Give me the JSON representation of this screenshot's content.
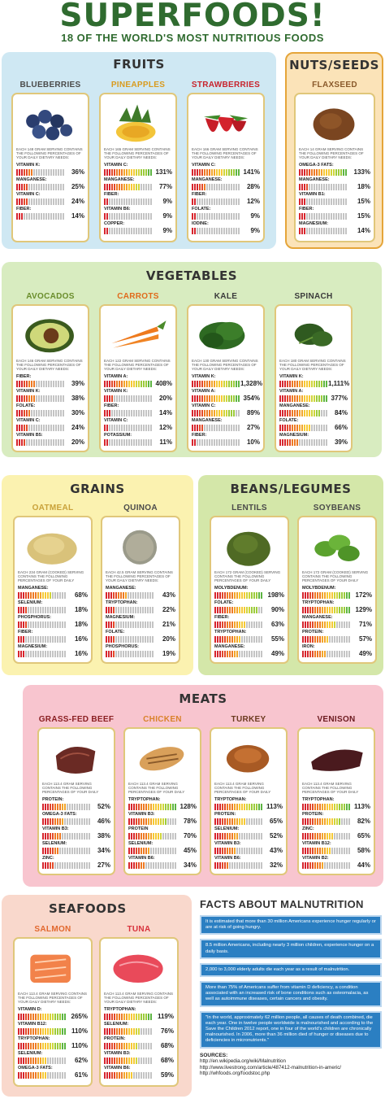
{
  "title": "SUPERFOODS!",
  "subtitle": "18 OF THE WORLD'S MOST NUTRITIOUS FOODS",
  "colors": {
    "fruits_bg": "#cfe8f3",
    "nuts_bg": "#fbe3b8",
    "vegetables_bg": "#d8ecc0",
    "grains_bg": "#fbf2b0",
    "beans_bg": "#d4e7a9",
    "meats_bg": "#f8c5cf",
    "seafoods_bg": "#f9d8cc",
    "fact_box": "#2b7fc2",
    "title_green": "#2f6b2f"
  },
  "sections": [
    {
      "key": "fruits",
      "title": "FRUITS",
      "foods": [
        {
          "name": "BLUEBERRIES",
          "name_color": "#4b4b4b",
          "icon": "blueberries-photo",
          "serving": "EACH 148 GRAM SERVING CONTAINS THE FOLLOWING PERCENTAGES OF YOUR DAILY DIETARY NEEDS:",
          "nutrients": [
            {
              "name": "VITAMIN K:",
              "value": "36%",
              "level": 0.36
            },
            {
              "name": "MANGANESE:",
              "value": "25%",
              "level": 0.25
            },
            {
              "name": "VITAMIN C:",
              "value": "24%",
              "level": 0.24
            },
            {
              "name": "FIBER:",
              "value": "14%",
              "level": 0.14
            }
          ]
        },
        {
          "name": "PINEAPPLES",
          "name_color": "#d99b1e",
          "icon": "pineapple-photo",
          "serving": "EACH 165 GRAM SERVING CONTAINS THE FOLLOWING PERCENTAGES OF YOUR DAILY DIETARY NEEDS:",
          "nutrients": [
            {
              "name": "VITAMIN C:",
              "value": "131%",
              "level": 1.0
            },
            {
              "name": "MANGANESE:",
              "value": "77%",
              "level": 0.77
            },
            {
              "name": "FIBER:",
              "value": "9%",
              "level": 0.09
            },
            {
              "name": "VITAMIN B6:",
              "value": "9%",
              "level": 0.09
            },
            {
              "name": "COPPER:",
              "value": "9%",
              "level": 0.09
            }
          ]
        },
        {
          "name": "STRAWBERRIES",
          "name_color": "#c8232c",
          "icon": "strawberries-photo",
          "serving": "EACH 166 GRAM SERVING CONTAINS THE FOLLOWING PERCENTAGES OF YOUR DAILY DIETARY NEEDS:",
          "nutrients": [
            {
              "name": "VITAMIN C:",
              "value": "141%",
              "level": 1.0
            },
            {
              "name": "MANGANESE:",
              "value": "28%",
              "level": 0.28
            },
            {
              "name": "FIBER:",
              "value": "12%",
              "level": 0.12
            },
            {
              "name": "FOLATE:",
              "value": "9%",
              "level": 0.09
            },
            {
              "name": "IODINE:",
              "value": "9%",
              "level": 0.09
            }
          ]
        }
      ]
    },
    {
      "key": "nuts",
      "title": "NUTS/SEEDS",
      "foods": [
        {
          "name": "FLAXSEED",
          "name_color": "#8a5a2b",
          "icon": "flaxseed-photo",
          "serving": "EACH 14 GRAM SERVING CONTAINS THE FOLLOWING PERCENTAGES OF YOUR DAILY DIETARY NEEDS:",
          "nutrients": [
            {
              "name": "OMEGA-3 FATS:",
              "value": "133%",
              "level": 1.0
            },
            {
              "name": "MANGANESE:",
              "value": "18%",
              "level": 0.18
            },
            {
              "name": "VITAMIN B1:",
              "value": "15%",
              "level": 0.15
            },
            {
              "name": "FIBER:",
              "value": "15%",
              "level": 0.15
            },
            {
              "name": "MAGNESIUM:",
              "value": "14%",
              "level": 0.14
            }
          ]
        }
      ]
    },
    {
      "key": "vegetables",
      "title": "VEGETABLES",
      "foods": [
        {
          "name": "AVOCADOS",
          "name_color": "#6a8d2b",
          "icon": "avocado-photo",
          "serving": "EACH 146 GRAM SERVING CONTAINS THE FOLLOWING PERCENTAGES OF YOUR DAILY DIETARY NEEDS:",
          "nutrients": [
            {
              "name": "FIBER:",
              "value": "39%",
              "level": 0.39
            },
            {
              "name": "VITAMIN K:",
              "value": "38%",
              "level": 0.38
            },
            {
              "name": "FOLATE:",
              "value": "30%",
              "level": 0.3
            },
            {
              "name": "VITAMIN C:",
              "value": "24%",
              "level": 0.24
            },
            {
              "name": "VITAMIN B5:",
              "value": "20%",
              "level": 0.2
            }
          ]
        },
        {
          "name": "CARROTS",
          "name_color": "#e06a1b",
          "icon": "carrots-photo",
          "serving": "EACH 122 GRAM SERVING CONTAINS THE FOLLOWING PERCENTAGES OF YOUR DAILY DIETARY NEEDS:",
          "nutrients": [
            {
              "name": "VITAMIN A:",
              "value": "408%",
              "level": 1.0
            },
            {
              "name": "VITAMIN K:",
              "value": "20%",
              "level": 0.2
            },
            {
              "name": "FIBER:",
              "value": "14%",
              "level": 0.14
            },
            {
              "name": "VITAMIN C:",
              "value": "12%",
              "level": 0.12
            },
            {
              "name": "POTASSIUM:",
              "value": "11%",
              "level": 0.11
            }
          ]
        },
        {
          "name": "KALE",
          "name_color": "#3b3b3b",
          "icon": "kale-photo",
          "serving": "EACH 130 GRAM SERVING CONTAINS THE FOLLOWING PERCENTAGES OF YOUR DAILY DIETARY NEEDS:",
          "nutrients": [
            {
              "name": "VITAMIN K:",
              "value": "1,328%",
              "level": 1.0
            },
            {
              "name": "VITAMIN A:",
              "value": "354%",
              "level": 1.0
            },
            {
              "name": "VITAMIN C:",
              "value": "89%",
              "level": 0.89
            },
            {
              "name": "MANGANESE:",
              "value": "27%",
              "level": 0.27
            },
            {
              "name": "FIBER:",
              "value": "10%",
              "level": 0.1
            }
          ]
        },
        {
          "name": "SPINACH",
          "name_color": "#3b3b3b",
          "icon": "spinach-photo",
          "serving": "EACH 180 GRAM SERVING CONTAINS THE FOLLOWING PERCENTAGES OF YOUR DAILY DIETARY NEEDS:",
          "nutrients": [
            {
              "name": "VITAMIN K:",
              "value": "1,111%",
              "level": 1.0
            },
            {
              "name": "VITAMIN A:",
              "value": "377%",
              "level": 1.0
            },
            {
              "name": "MANGANESE:",
              "value": "84%",
              "level": 0.84
            },
            {
              "name": "FOLATE:",
              "value": "66%",
              "level": 0.66
            },
            {
              "name": "MAGNESIUM:",
              "value": "39%",
              "level": 0.39
            }
          ]
        }
      ]
    },
    {
      "key": "grains",
      "title": "GRAINS",
      "foods": [
        {
          "name": "OATMEAL",
          "name_color": "#c9a23a",
          "icon": "oatmeal-photo",
          "serving": "EACH 234 GRAM (COOKED) SERVING CONTAINS THE FOLLOWING PERCENTAGES OF YOUR DAILY DIETARY NEEDS:",
          "nutrients": [
            {
              "name": "MANGANESE:",
              "value": "68%",
              "level": 0.68
            },
            {
              "name": "SELENIUM:",
              "value": "18%",
              "level": 0.18
            },
            {
              "name": "PHOSPHORUS:",
              "value": "18%",
              "level": 0.18
            },
            {
              "name": "FIBER:",
              "value": "16%",
              "level": 0.16
            },
            {
              "name": "MAGNESIUM:",
              "value": "16%",
              "level": 0.16
            }
          ]
        },
        {
          "name": "QUINOA",
          "name_color": "#4b4b4b",
          "icon": "quinoa-photo",
          "serving": "EACH 42.5 GRAM SERVING CONTAINS THE FOLLOWING PERCENTAGES OF YOUR DAILY DIETARY NEEDS:",
          "nutrients": [
            {
              "name": "MANGANESE:",
              "value": "43%",
              "level": 0.43
            },
            {
              "name": "TRYPTOPHAN:",
              "value": "22%",
              "level": 0.22
            },
            {
              "name": "MAGNESIUM:",
              "value": "21%",
              "level": 0.21
            },
            {
              "name": "FOLATE:",
              "value": "20%",
              "level": 0.2
            },
            {
              "name": "PHOSPHORUS:",
              "value": "19%",
              "level": 0.19
            }
          ]
        }
      ]
    },
    {
      "key": "beans",
      "title": "BEANS/LEGUMES",
      "foods": [
        {
          "name": "LENTILS",
          "name_color": "#4b4b4b",
          "icon": "lentils-photo",
          "serving": "EACH 172 GRAM (COOKED) SERVING CONTAINS THE FOLLOWING PERCENTAGES OF YOUR DAILY DIETARY NEEDS:",
          "nutrients": [
            {
              "name": "MOLYBDENUM:",
              "value": "198%",
              "level": 1.0
            },
            {
              "name": "FOLATE:",
              "value": "90%",
              "level": 0.9
            },
            {
              "name": "FIBER:",
              "value": "63%",
              "level": 0.63
            },
            {
              "name": "TRYPTOPHAN:",
              "value": "55%",
              "level": 0.55
            },
            {
              "name": "MANGANESE:",
              "value": "49%",
              "level": 0.49
            }
          ]
        },
        {
          "name": "SOYBEANS",
          "name_color": "#4b4b4b",
          "icon": "soybeans-photo",
          "serving": "EACH 172 GRAM (COOKED) SERVING CONTAINS THE FOLLOWING PERCENTAGES OF YOUR DAILY DIETARY NEEDS:",
          "nutrients": [
            {
              "name": "MOLYBDENUM:",
              "value": "172%",
              "level": 1.0
            },
            {
              "name": "TRYPTOPHAN:",
              "value": "129%",
              "level": 1.0
            },
            {
              "name": "MANGANESE:",
              "value": "71%",
              "level": 0.71
            },
            {
              "name": "PROTEIN:",
              "value": "57%",
              "level": 0.57
            },
            {
              "name": "IRON:",
              "value": "49%",
              "level": 0.49
            }
          ]
        }
      ]
    },
    {
      "key": "meats",
      "title": "MEATS",
      "foods": [
        {
          "name": "GRASS-FED BEEF",
          "name_color": "#8a1f22",
          "icon": "beef-photo",
          "serving": "EACH 113.4 GRAM SERVING CONTAINS THE FOLLOWING PERCENTAGES OF YOUR DAILY DIETARY NEEDS:",
          "nutrients": [
            {
              "name": "PROTEIN:",
              "value": "52%",
              "level": 0.52
            },
            {
              "name": "OMEGA-3 FATS:",
              "value": "46%",
              "level": 0.46
            },
            {
              "name": "VITAMIN B3:",
              "value": "38%",
              "level": 0.38
            },
            {
              "name": "SELENIUM:",
              "value": "34%",
              "level": 0.34
            },
            {
              "name": "ZINC:",
              "value": "27%",
              "level": 0.27
            }
          ]
        },
        {
          "name": "CHICKEN",
          "name_color": "#d9822b",
          "icon": "chicken-photo",
          "serving": "EACH 113.4 GRAM SERVING CONTAINS THE FOLLOWING PERCENTAGES OF YOUR DAILY DIETARY NEEDS:",
          "nutrients": [
            {
              "name": "TRYPTOPHAN:",
              "value": "128%",
              "level": 1.0
            },
            {
              "name": "VITAMIN B3:",
              "value": "78%",
              "level": 0.78
            },
            {
              "name": "PROTEIN",
              "value": "70%",
              "level": 0.7
            },
            {
              "name": "SELENIUM:",
              "value": "45%",
              "level": 0.45
            },
            {
              "name": "VITAMIN B6:",
              "value": "34%",
              "level": 0.34
            }
          ]
        },
        {
          "name": "TURKEY",
          "name_color": "#6b3a1f",
          "icon": "turkey-photo",
          "serving": "EACH 113.4 GRAM SERVING CONTAINS THE FOLLOWING PERCENTAGES OF YOUR DAILY DIETARY NEEDS:",
          "nutrients": [
            {
              "name": "TRYPTOPHAN:",
              "value": "113%",
              "level": 1.0
            },
            {
              "name": "PROTEIN:",
              "value": "65%",
              "level": 0.65
            },
            {
              "name": "SELENIUM:",
              "value": "52%",
              "level": 0.52
            },
            {
              "name": "VITAMIN B3:",
              "value": "43%",
              "level": 0.43
            },
            {
              "name": "VITAMIN B6:",
              "value": "32%",
              "level": 0.32
            }
          ]
        },
        {
          "name": "VENISON",
          "name_color": "#6b1a1f",
          "icon": "venison-photo",
          "serving": "EACH 113.4 GRAM SERVING CONTAINS THE FOLLOWING PERCENTAGES OF YOUR DAILY DIETARY NEEDS:",
          "nutrients": [
            {
              "name": "TRYPTOPHAN:",
              "value": "113%",
              "level": 1.0
            },
            {
              "name": "PROTEIN:",
              "value": "82%",
              "level": 0.82
            },
            {
              "name": "ZINC:",
              "value": "65%",
              "level": 0.65
            },
            {
              "name": "VITAMIN B12:",
              "value": "58%",
              "level": 0.58
            },
            {
              "name": "VITAMIN B2:",
              "value": "44%",
              "level": 0.44
            }
          ]
        }
      ]
    },
    {
      "key": "seafoods",
      "title": "SEAFOODS",
      "foods": [
        {
          "name": "SALMON",
          "name_color": "#e2682e",
          "icon": "salmon-photo",
          "serving": "EACH 113.4 GRAM SERVING CONTAINS THE FOLLOWING PERCENTAGES OF YOUR DAILY DIETARY NEEDS:",
          "nutrients": [
            {
              "name": "VITAMIN D:",
              "value": "265%",
              "level": 1.0
            },
            {
              "name": "VITAMIN B12:",
              "value": "110%",
              "level": 1.0
            },
            {
              "name": "TRYPTOPHAN:",
              "value": "110%",
              "level": 1.0
            },
            {
              "name": "SELENIUM:",
              "value": "62%",
              "level": 0.62
            },
            {
              "name": "OMEGA-3 FATS:",
              "value": "61%",
              "level": 0.61
            }
          ]
        },
        {
          "name": "TUNA",
          "name_color": "#d8323c",
          "icon": "tuna-photo",
          "serving": "EACH 113.4 GRAM SERVING CONTAINS THE FOLLOWING PERCENTAGES OF YOUR DAILY DIETARY NEEDS:",
          "nutrients": [
            {
              "name": "TRYPTOPHAN:",
              "value": "119%",
              "level": 1.0
            },
            {
              "name": "SELENIUM:",
              "value": "76%",
              "level": 0.76
            },
            {
              "name": "PROTEIN:",
              "value": "68%",
              "level": 0.68
            },
            {
              "name": "VITAMIN B3:",
              "value": "68%",
              "level": 0.68
            },
            {
              "name": "VITAMIN B6:",
              "value": "59%",
              "level": 0.59
            }
          ]
        }
      ]
    }
  ],
  "facts": {
    "title": "FACTS ABOUT MALNUTRITION",
    "items": [
      "It is estimated that more than 30 million Americans experience hunger regularly or are at risk of going hungry.",
      "8.5 million Americans, including nearly 3 million children, experience hunger on a daily basis.",
      "2,000 to 3,000 elderly adults die each year as a result of malnutrition.",
      "More than 75% of Americans suffer from vitamin D deficiency, a condition associated with an increased risk of bone conditions such as osteomalacia, as well as autoimmune diseases, certain cancers and obesity.",
      "\"In the world, approximately 62 million people, all causes of death combined, die each year. One in twelve people worldwide is malnourished and according to the Save the Children 2012 report, one in four of the world's children are chronically malnourished. In 2006, more than 36 million died of hunger or diseases due to deficiencies in micronutrients.\""
    ],
    "sources_label": "SOURCES:",
    "sources": [
      "http://en.wikipedia.org/wiki/Malnutrition",
      "http://www.livestrong.com/article/487412-malnutrition-in-americ/",
      "http://whfoods.org/foodstoc.php"
    ]
  }
}
